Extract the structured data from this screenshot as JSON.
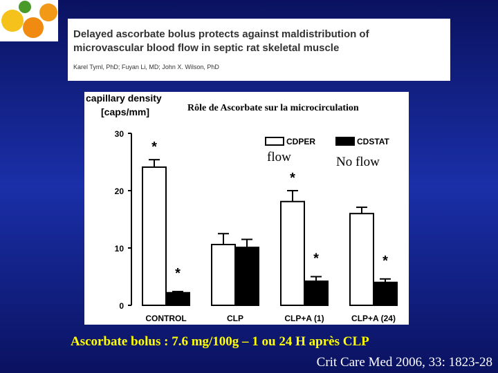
{
  "slide": {
    "paper_title": [
      "Delayed ascorbate bolus protects against maldistribution of",
      "microvascular blood flow in septic rat skeletal muscle"
    ],
    "authors": "Karel Tyml, PhD; Fuyan Li, MD; John X. Wilson, PhD",
    "footer": "Ascorbate bolus : 7.6 mg/100g – 1 ou 24 H après CLP",
    "citation": "Crit Care Med 2006, 33: 1823-28"
  },
  "chart_data": {
    "type": "bar",
    "title": "Rôle de Ascorbate sur la microcirculation",
    "ylabel": [
      "capillary density",
      "[caps/mm]"
    ],
    "categories": [
      "CONTROL",
      "CLP",
      "CLP+A (1)",
      "CLP+A (24)"
    ],
    "series": [
      {
        "name": "CDPER",
        "color": "#ffffff",
        "values": [
          24.1,
          10.6,
          18.1,
          16.0
        ],
        "errors": [
          1.3,
          1.9,
          1.9,
          1.1
        ],
        "annotations": [
          "*",
          null,
          "*",
          null
        ],
        "note": "flow"
      },
      {
        "name": "CDSTAT",
        "color": "#000000",
        "values": [
          2.2,
          10.1,
          4.2,
          4.0
        ],
        "errors": [
          0.2,
          1.4,
          0.8,
          0.6
        ],
        "annotations": [
          "*",
          null,
          "*",
          "*"
        ],
        "note": "No flow"
      }
    ],
    "ylim": [
      0,
      30
    ],
    "yticks": [
      0,
      10,
      20,
      30
    ]
  }
}
